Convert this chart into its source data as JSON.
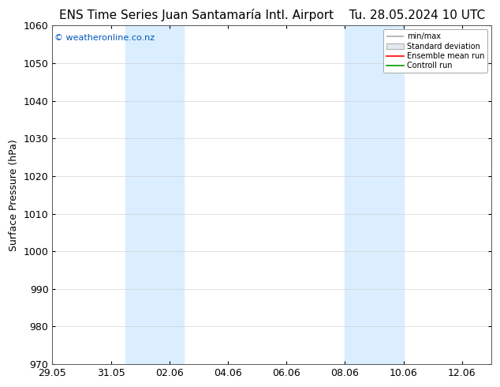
{
  "title_left": "ENS Time Series Juan Santamaría Intl. Airport",
  "title_right": "Tu. 28.05.2024 10 UTC",
  "ylabel": "Surface Pressure (hPa)",
  "ylim": [
    970,
    1060
  ],
  "yticks": [
    970,
    980,
    990,
    1000,
    1010,
    1020,
    1030,
    1040,
    1050,
    1060
  ],
  "xlim_start": "2024-05-29",
  "xlim_end": "2024-06-13",
  "xtick_labels": [
    "29.05",
    "31.05",
    "02.06",
    "04.06",
    "06.06",
    "08.06",
    "10.06",
    "12.06"
  ],
  "xtick_dates": [
    "2024-05-29",
    "2024-05-31",
    "2024-06-02",
    "2024-06-04",
    "2024-06-06",
    "2024-06-08",
    "2024-06-10",
    "2024-06-12"
  ],
  "shaded_bands": [
    {
      "start": "2024-05-31 12:00",
      "end": "2024-06-02 12:00"
    },
    {
      "start": "2024-06-08",
      "end": "2024-06-10"
    }
  ],
  "shaded_color": "#daeeff",
  "watermark": "© weatheronline.co.nz",
  "watermark_color": "#0055bb",
  "background_color": "#ffffff",
  "legend_items": [
    {
      "label": "min/max",
      "color": "#aaaaaa",
      "style": "minmax"
    },
    {
      "label": "Standard deviation",
      "color": "#cccccc",
      "style": "box"
    },
    {
      "label": "Ensemble mean run",
      "color": "#ff0000",
      "style": "line"
    },
    {
      "label": "Controll run",
      "color": "#009900",
      "style": "line"
    }
  ],
  "title_fontsize": 11,
  "tick_fontsize": 9,
  "ylabel_fontsize": 9,
  "legend_fontsize": 7,
  "grid_color": "#cccccc",
  "spine_color": "#555555"
}
